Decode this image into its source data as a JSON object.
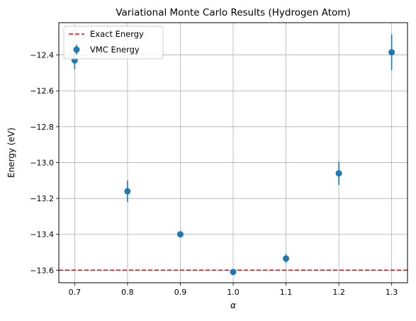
{
  "chart_data": {
    "type": "scatter",
    "title": "Variational Monte Carlo Results (Hydrogen Atom)",
    "xlabel": "α",
    "ylabel": "Energy (eV)",
    "xlim": [
      0.67,
      1.33
    ],
    "ylim": [
      -13.67,
      -12.22
    ],
    "x_ticks": [
      0.7,
      0.8,
      0.9,
      1.0,
      1.1,
      1.2,
      1.3
    ],
    "x_tick_labels": [
      "0.7",
      "0.8",
      "0.9",
      "1.0",
      "1.1",
      "1.2",
      "1.3"
    ],
    "y_ticks": [
      -13.6,
      -13.4,
      -13.2,
      -13.0,
      -12.8,
      -12.6,
      -12.4
    ],
    "y_tick_labels": [
      "−13.6",
      "−13.4",
      "−13.2",
      "−13.0",
      "−12.8",
      "−12.6",
      "−12.4"
    ],
    "grid": true,
    "legend_position": "top-left",
    "series": [
      {
        "name": "VMC Energy",
        "kind": "errorbar",
        "color": "#1f77b4",
        "x": [
          0.7,
          0.8,
          0.9,
          1.0,
          1.1,
          1.2,
          1.3
        ],
        "y": [
          -12.43,
          -13.16,
          -13.4,
          -13.61,
          -13.535,
          -13.06,
          -12.385
        ],
        "yerr": [
          0.05,
          0.06,
          0.015,
          0.005,
          0.025,
          0.065,
          0.1
        ]
      },
      {
        "name": "Exact Energy",
        "kind": "hline",
        "color": "#ff0000",
        "linestyle": "dashed",
        "y": -13.6
      }
    ]
  }
}
